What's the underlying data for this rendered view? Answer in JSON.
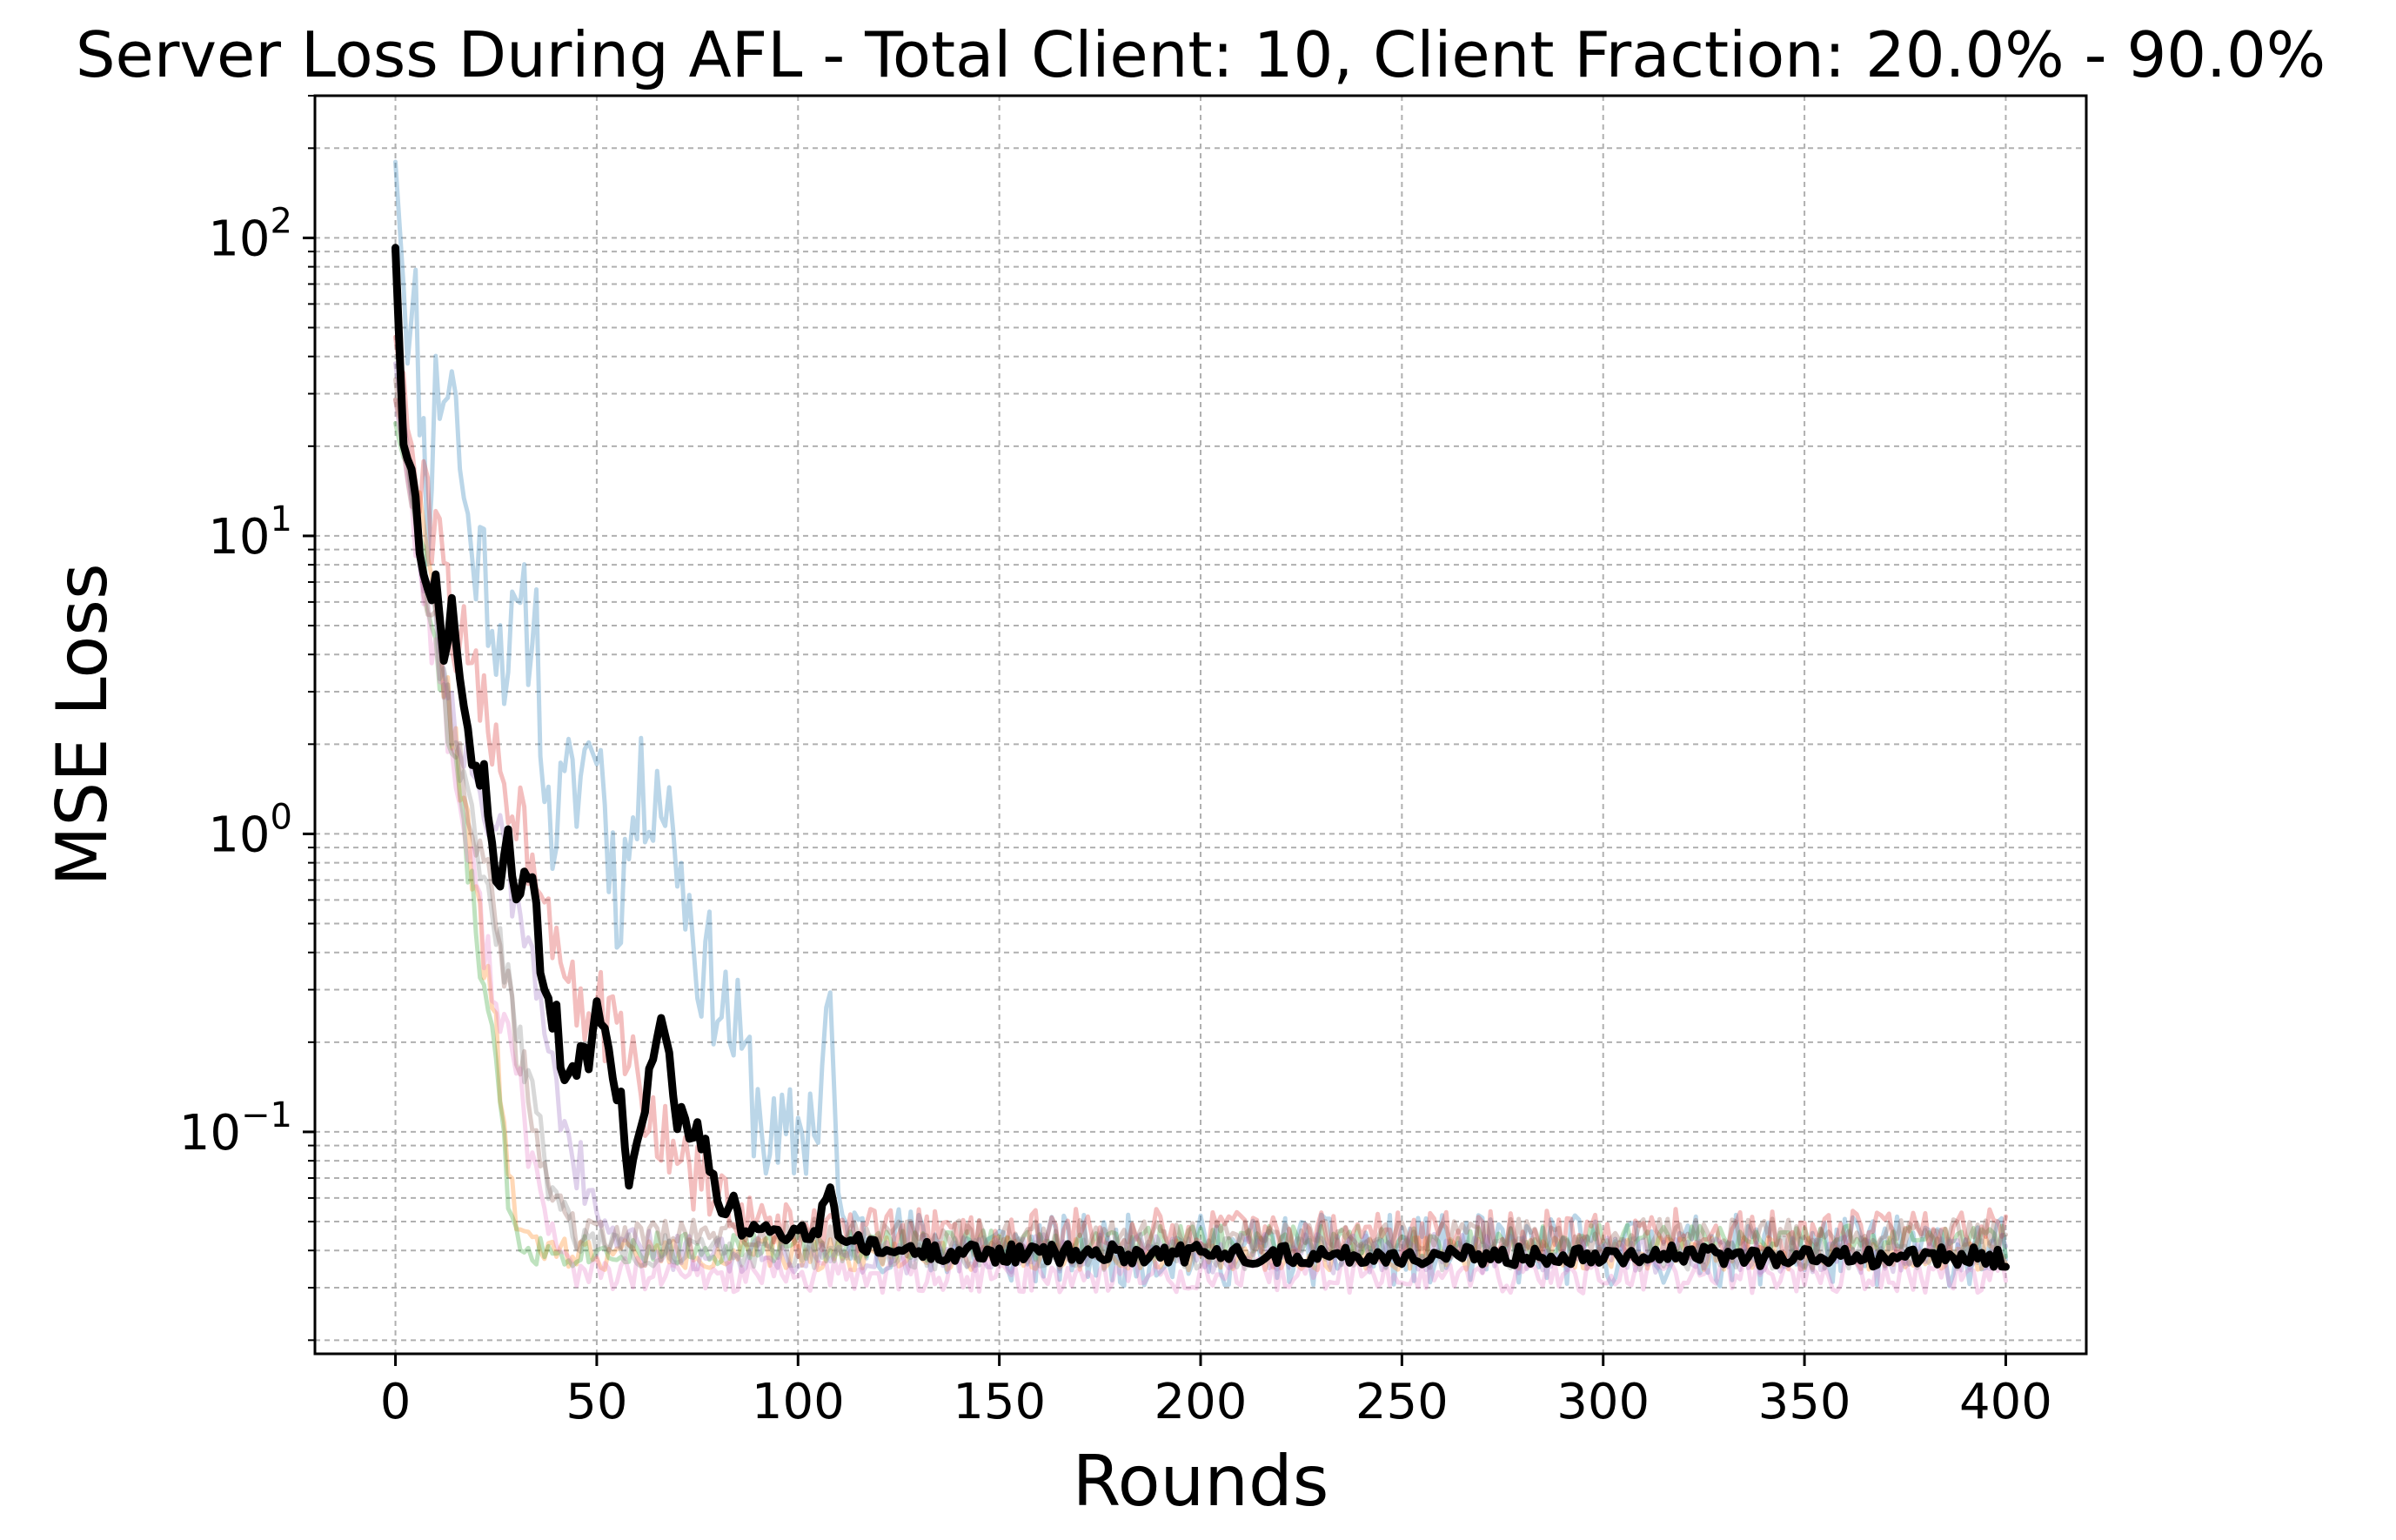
{
  "chart_data": {
    "type": "line",
    "title": "Server Loss During AFL - Total Client: 10, Client Fraction: 20.0% - 90.0%",
    "xlabel": "Rounds",
    "ylabel": "MSE Loss",
    "xlim": [
      -20,
      420
    ],
    "ylim": [
      0.018,
      300
    ],
    "yscale": "log",
    "grid": true,
    "grid_minor_y": true,
    "legend": "none",
    "x_ticks": [
      0,
      50,
      100,
      150,
      200,
      250,
      300,
      350,
      400
    ],
    "x_tick_labels": [
      "0",
      "50",
      "100",
      "150",
      "200",
      "250",
      "300",
      "350",
      "400"
    ],
    "y_ticks": [
      100,
      10,
      1,
      0.1
    ],
    "y_tick_labels": [
      {
        "base": "10",
        "exp": "2"
      },
      {
        "base": "10",
        "exp": "1"
      },
      {
        "base": "10",
        "exp": "0"
      },
      {
        "base": "10",
        "exp": "−1"
      }
    ],
    "series": [
      {
        "color": "#1f77b4",
        "opacity": 0.3,
        "width": 5,
        "anchors": [
          [
            0,
            200
          ],
          [
            3,
            45
          ],
          [
            5,
            55
          ],
          [
            8,
            12
          ],
          [
            10,
            30
          ],
          [
            14,
            35
          ],
          [
            18,
            10
          ],
          [
            22,
            8
          ],
          [
            25,
            5
          ],
          [
            28,
            4
          ],
          [
            32,
            5
          ],
          [
            35,
            5
          ],
          [
            38,
            1
          ],
          [
            45,
            1.5
          ],
          [
            50,
            2.2
          ],
          [
            55,
            0.6
          ],
          [
            60,
            1.2
          ],
          [
            65,
            1.6
          ],
          [
            70,
            0.9
          ],
          [
            75,
            0.4
          ],
          [
            80,
            0.3
          ],
          [
            85,
            0.2
          ],
          [
            90,
            0.12
          ],
          [
            95,
            0.08
          ],
          [
            100,
            0.1
          ],
          [
            105,
            0.12
          ],
          [
            108,
            0.3
          ],
          [
            110,
            0.05
          ],
          [
            115,
            0.045
          ],
          [
            120,
            0.045
          ],
          [
            130,
            0.042
          ],
          [
            150,
            0.04
          ],
          [
            200,
            0.04
          ],
          [
            260,
            0.04
          ],
          [
            300,
            0.04
          ],
          [
            350,
            0.04
          ],
          [
            400,
            0.04
          ]
        ],
        "amp": 0.22,
        "seed": 11
      },
      {
        "color": "#ff7f0e",
        "opacity": 0.3,
        "width": 5,
        "anchors": [
          [
            0,
            30
          ],
          [
            5,
            15
          ],
          [
            10,
            5
          ],
          [
            15,
            2
          ],
          [
            20,
            0.6
          ],
          [
            25,
            0.2
          ],
          [
            28,
            0.08
          ],
          [
            30,
            0.05
          ],
          [
            35,
            0.04
          ],
          [
            50,
            0.039
          ],
          [
            100,
            0.039
          ],
          [
            200,
            0.039
          ],
          [
            300,
            0.039
          ],
          [
            400,
            0.039
          ]
        ],
        "amp": 0.1,
        "seed": 22
      },
      {
        "color": "#2ca02c",
        "opacity": 0.3,
        "width": 5,
        "anchors": [
          [
            0,
            25
          ],
          [
            5,
            12
          ],
          [
            10,
            4
          ],
          [
            15,
            1.5
          ],
          [
            20,
            0.5
          ],
          [
            25,
            0.15
          ],
          [
            28,
            0.06
          ],
          [
            30,
            0.045
          ],
          [
            35,
            0.04
          ],
          [
            100,
            0.041
          ],
          [
            200,
            0.043
          ],
          [
            300,
            0.043
          ],
          [
            400,
            0.043
          ]
        ],
        "amp": 0.1,
        "seed": 33
      },
      {
        "color": "#d62728",
        "opacity": 0.3,
        "width": 5,
        "anchors": [
          [
            0,
            50
          ],
          [
            5,
            15
          ],
          [
            10,
            10
          ],
          [
            15,
            5
          ],
          [
            20,
            3
          ],
          [
            25,
            2
          ],
          [
            30,
            1.2
          ],
          [
            35,
            0.8
          ],
          [
            40,
            0.5
          ],
          [
            45,
            0.3
          ],
          [
            50,
            0.25
          ],
          [
            55,
            0.2
          ],
          [
            60,
            0.15
          ],
          [
            65,
            0.1
          ],
          [
            70,
            0.08
          ],
          [
            75,
            0.07
          ],
          [
            80,
            0.06
          ],
          [
            90,
            0.05
          ],
          [
            100,
            0.046
          ],
          [
            120,
            0.045
          ],
          [
            200,
            0.045
          ],
          [
            300,
            0.045
          ],
          [
            400,
            0.045
          ]
        ],
        "amp": 0.16,
        "seed": 44
      },
      {
        "color": "#9467bd",
        "opacity": 0.3,
        "width": 5,
        "anchors": [
          [
            0,
            40
          ],
          [
            5,
            12
          ],
          [
            10,
            5
          ],
          [
            15,
            2.5
          ],
          [
            20,
            1.5
          ],
          [
            25,
            1
          ],
          [
            30,
            0.6
          ],
          [
            35,
            0.3
          ],
          [
            40,
            0.15
          ],
          [
            45,
            0.08
          ],
          [
            50,
            0.05
          ],
          [
            60,
            0.04
          ],
          [
            100,
            0.039
          ],
          [
            200,
            0.039
          ],
          [
            300,
            0.039
          ],
          [
            400,
            0.039
          ]
        ],
        "amp": 0.12,
        "seed": 55
      },
      {
        "color": "#8c564b",
        "opacity": 0.3,
        "width": 5,
        "anchors": [
          [
            0,
            35
          ],
          [
            5,
            10
          ],
          [
            10,
            5
          ],
          [
            15,
            2
          ],
          [
            20,
            1
          ],
          [
            25,
            0.5
          ],
          [
            30,
            0.2
          ],
          [
            35,
            0.1
          ],
          [
            40,
            0.06
          ],
          [
            45,
            0.045
          ],
          [
            60,
            0.045
          ],
          [
            100,
            0.045
          ],
          [
            200,
            0.045
          ],
          [
            300,
            0.045
          ],
          [
            400,
            0.045
          ]
        ],
        "amp": 0.1,
        "seed": 66
      },
      {
        "color": "#e377c2",
        "opacity": 0.3,
        "width": 5,
        "anchors": [
          [
            0,
            30
          ],
          [
            5,
            10
          ],
          [
            10,
            4
          ],
          [
            15,
            1.5
          ],
          [
            20,
            0.6
          ],
          [
            25,
            0.3
          ],
          [
            30,
            0.15
          ],
          [
            35,
            0.07
          ],
          [
            40,
            0.04
          ],
          [
            45,
            0.034
          ],
          [
            60,
            0.033
          ],
          [
            100,
            0.033
          ],
          [
            200,
            0.033
          ],
          [
            300,
            0.033
          ],
          [
            400,
            0.033
          ]
        ],
        "amp": 0.11,
        "seed": 77
      },
      {
        "color": "#7f7f7f",
        "opacity": 0.3,
        "width": 5,
        "anchors": [
          [
            0,
            30
          ],
          [
            5,
            12
          ],
          [
            10,
            5
          ],
          [
            15,
            2
          ],
          [
            20,
            1
          ],
          [
            25,
            0.5
          ],
          [
            30,
            0.25
          ],
          [
            35,
            0.1
          ],
          [
            40,
            0.06
          ],
          [
            45,
            0.045
          ],
          [
            60,
            0.04
          ],
          [
            100,
            0.039
          ],
          [
            200,
            0.039
          ],
          [
            300,
            0.039
          ],
          [
            400,
            0.039
          ]
        ],
        "amp": 0.1,
        "seed": 88
      },
      {
        "color": "#000000",
        "opacity": 1.0,
        "width": 9,
        "anchors": [
          [
            0,
            95
          ],
          [
            2,
            20
          ],
          [
            4,
            17
          ],
          [
            6,
            10
          ],
          [
            8,
            6
          ],
          [
            10,
            7
          ],
          [
            12,
            4
          ],
          [
            14,
            6
          ],
          [
            16,
            3
          ],
          [
            18,
            2
          ],
          [
            20,
            1.5
          ],
          [
            22,
            1.6
          ],
          [
            24,
            0.9
          ],
          [
            26,
            0.7
          ],
          [
            28,
            1.0
          ],
          [
            30,
            0.6
          ],
          [
            32,
            0.7
          ],
          [
            34,
            0.75
          ],
          [
            36,
            0.35
          ],
          [
            38,
            0.25
          ],
          [
            40,
            0.25
          ],
          [
            42,
            0.13
          ],
          [
            44,
            0.15
          ],
          [
            46,
            0.2
          ],
          [
            48,
            0.15
          ],
          [
            50,
            0.3
          ],
          [
            52,
            0.2
          ],
          [
            54,
            0.15
          ],
          [
            56,
            0.12
          ],
          [
            58,
            0.07
          ],
          [
            60,
            0.1
          ],
          [
            62,
            0.13
          ],
          [
            64,
            0.17
          ],
          [
            66,
            0.26
          ],
          [
            68,
            0.17
          ],
          [
            70,
            0.1
          ],
          [
            72,
            0.12
          ],
          [
            74,
            0.09
          ],
          [
            76,
            0.1
          ],
          [
            78,
            0.07
          ],
          [
            80,
            0.06
          ],
          [
            82,
            0.05
          ],
          [
            84,
            0.06
          ],
          [
            86,
            0.045
          ],
          [
            90,
            0.05
          ],
          [
            95,
            0.045
          ],
          [
            100,
            0.045
          ],
          [
            105,
            0.046
          ],
          [
            108,
            0.072
          ],
          [
            110,
            0.045
          ],
          [
            115,
            0.042
          ],
          [
            120,
            0.04
          ],
          [
            130,
            0.04
          ],
          [
            150,
            0.039
          ],
          [
            200,
            0.039
          ],
          [
            260,
            0.038
          ],
          [
            300,
            0.039
          ],
          [
            350,
            0.038
          ],
          [
            400,
            0.038
          ]
        ],
        "amp": 0.06,
        "seed": 99
      }
    ]
  }
}
